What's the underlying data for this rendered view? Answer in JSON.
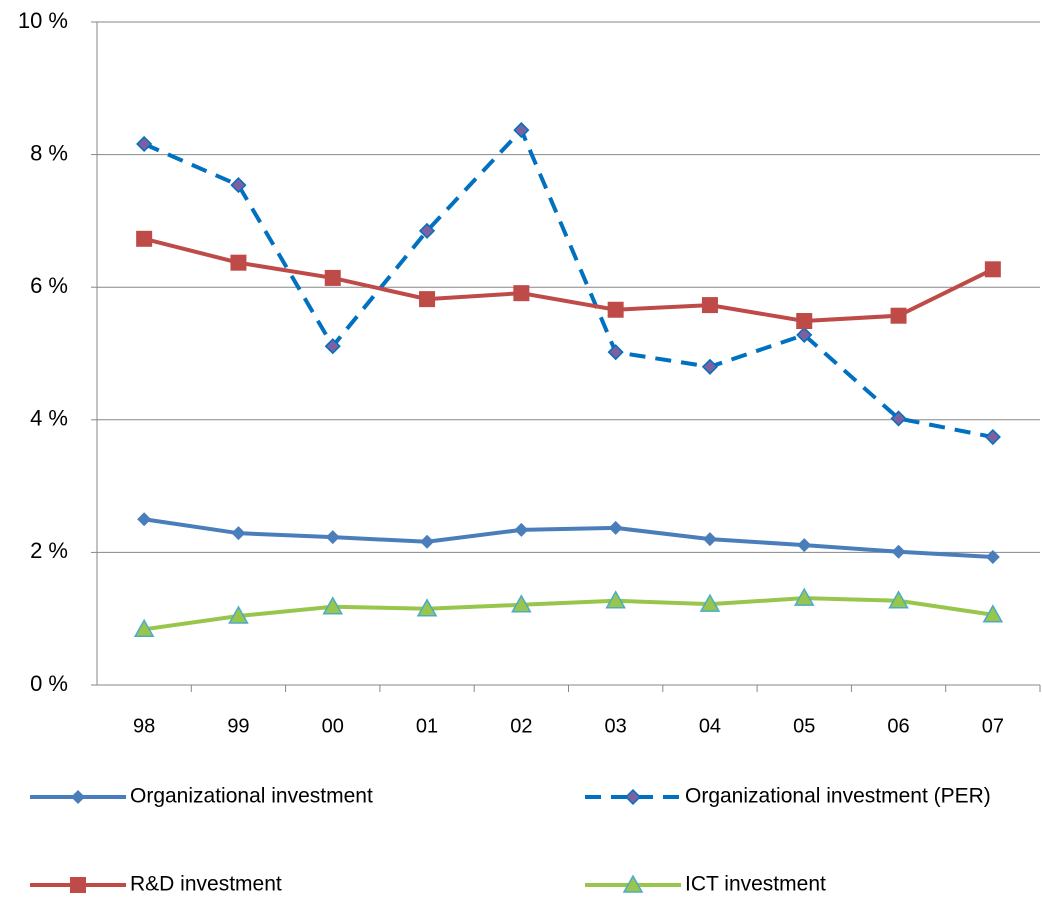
{
  "chart_data": {
    "type": "line",
    "categories": [
      "98",
      "99",
      "00",
      "01",
      "02",
      "03",
      "04",
      "05",
      "06",
      "07"
    ],
    "series": [
      {
        "name": "Organizational investment",
        "color": "#4a7ebb",
        "marker": "diamond",
        "marker_color": "#4a7ebb",
        "dashed": false,
        "values": [
          2.5,
          2.29,
          2.23,
          2.16,
          2.34,
          2.37,
          2.2,
          2.11,
          2.01,
          1.93
        ]
      },
      {
        "name": "Organizational investment (PER)",
        "color": "#0070c0",
        "marker": "diamond",
        "marker_color": "#7d60a0",
        "dashed": true,
        "values": [
          8.16,
          7.54,
          5.11,
          6.85,
          8.37,
          5.02,
          4.8,
          5.28,
          4.02,
          3.74
        ]
      },
      {
        "name": "R&D investment",
        "color": "#be4b48",
        "marker": "square",
        "marker_color": "#be4b48",
        "dashed": false,
        "values": [
          6.73,
          6.37,
          6.14,
          5.82,
          5.91,
          5.66,
          5.73,
          5.49,
          5.57,
          6.27
        ]
      },
      {
        "name": "ICT investment",
        "color": "#98c64c",
        "marker": "triangle",
        "marker_color": "#4bacc6",
        "dashed": false,
        "values": [
          0.84,
          1.04,
          1.18,
          1.15,
          1.21,
          1.27,
          1.22,
          1.31,
          1.27,
          1.06
        ]
      }
    ],
    "ylim": [
      0,
      10
    ],
    "yticks": [
      {
        "value": 0,
        "label": "0 %"
      },
      {
        "value": 2,
        "label": "2 %"
      },
      {
        "value": 4,
        "label": "4 %"
      },
      {
        "value": 6,
        "label": "6 %"
      },
      {
        "value": 8,
        "label": "8 %"
      },
      {
        "value": 10,
        "label": "10 %"
      }
    ],
    "grid": true,
    "legend": "bottom"
  }
}
